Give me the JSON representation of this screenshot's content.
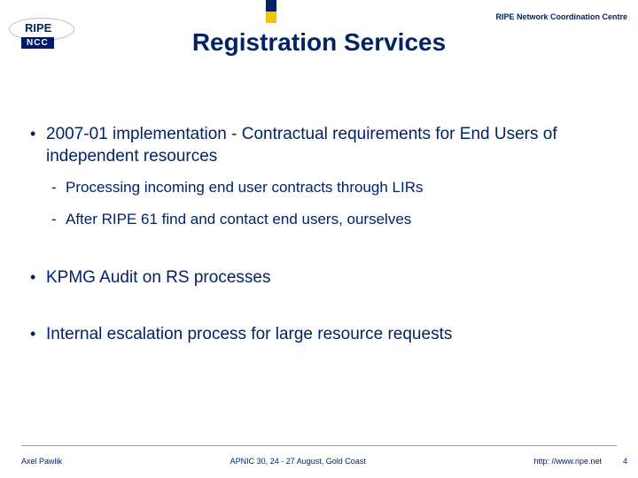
{
  "colors": {
    "brand_blue": "#022366",
    "accent_yellow": "#f2c500",
    "text": "#000000",
    "footer": "#022366"
  },
  "header": {
    "org_line": "RIPE Network Coordination Centre"
  },
  "logo": {
    "top": "RIPE",
    "bottom": "NCC"
  },
  "title": "Registration Services",
  "bullets": [
    {
      "level": 1,
      "text": "2007-01 implementation - Contractual requirements for End Users of independent resources"
    },
    {
      "level": 2,
      "text": "Processing incoming end user contracts through LIRs"
    },
    {
      "level": 2,
      "text": "After RIPE 61 find and contact end users, ourselves"
    },
    {
      "level": 0,
      "text": ""
    },
    {
      "level": 1,
      "text": "KPMG Audit on RS processes"
    },
    {
      "level": 0,
      "text": ""
    },
    {
      "level": 1,
      "text": "Internal escalation process for large resource requests"
    }
  ],
  "footer": {
    "author": "Axel Pawlik",
    "event": "APNIC 30, 24 - 27 August, Gold Coast",
    "url": "http: //www.ripe.net",
    "page": "4"
  }
}
